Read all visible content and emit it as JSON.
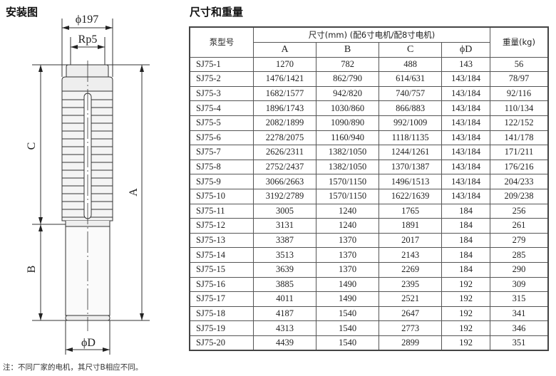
{
  "drawing": {
    "title": "安装图",
    "labels": {
      "outer_diameter": "ϕ197",
      "outlet": "Rp5",
      "dim_a": "A",
      "dim_b": "B",
      "dim_c": "C",
      "dim_d": "ϕD"
    }
  },
  "table": {
    "title": "尺寸和重量",
    "headers": {
      "model": "泵型号",
      "dimensions": "尺寸(mm) (配6寸电机/配8寸电机)",
      "weight": "重量(kg)",
      "sub": [
        "A",
        "B",
        "C",
        "ϕD"
      ]
    },
    "rows": [
      [
        "SJ75-1",
        "1270",
        "782",
        "488",
        "143",
        "56"
      ],
      [
        "SJ75-2",
        "1476/1421",
        "862/790",
        "614/631",
        "143/184",
        "78/97"
      ],
      [
        "SJ75-3",
        "1682/1577",
        "942/820",
        "740/757",
        "143/184",
        "92/116"
      ],
      [
        "SJ75-4",
        "1896/1743",
        "1030/860",
        "866/883",
        "143/184",
        "110/134"
      ],
      [
        "SJ75-5",
        "2082/1899",
        "1090/890",
        "992/1009",
        "143/184",
        "122/152"
      ],
      [
        "SJ75-6",
        "2278/2075",
        "1160/940",
        "1118/1135",
        "143/184",
        "141/178"
      ],
      [
        "SJ75-7",
        "2626/2311",
        "1382/1050",
        "1244/1261",
        "143/184",
        "171/211"
      ],
      [
        "SJ75-8",
        "2752/2437",
        "1382/1050",
        "1370/1387",
        "143/184",
        "176/216"
      ],
      [
        "SJ75-9",
        "3066/2663",
        "1570/1150",
        "1496/1513",
        "143/184",
        "204/233"
      ],
      [
        "SJ75-10",
        "3192/2789",
        "1570/1150",
        "1622/1639",
        "143/184",
        "209/238"
      ],
      [
        "SJ75-11",
        "3005",
        "1240",
        "1765",
        "184",
        "256"
      ],
      [
        "SJ75-12",
        "3131",
        "1240",
        "1891",
        "184",
        "261"
      ],
      [
        "SJ75-13",
        "3387",
        "1370",
        "2017",
        "184",
        "279"
      ],
      [
        "SJ75-14",
        "3513",
        "1370",
        "2143",
        "184",
        "285"
      ],
      [
        "SJ75-15",
        "3639",
        "1370",
        "2269",
        "184",
        "290"
      ],
      [
        "SJ75-16",
        "3885",
        "1490",
        "2395",
        "192",
        "309"
      ],
      [
        "SJ75-17",
        "4011",
        "1490",
        "2521",
        "192",
        "315"
      ],
      [
        "SJ75-18",
        "4187",
        "1540",
        "2647",
        "192",
        "341"
      ],
      [
        "SJ75-19",
        "4313",
        "1540",
        "2773",
        "192",
        "346"
      ],
      [
        "SJ75-20",
        "4439",
        "1540",
        "2899",
        "192",
        "351"
      ]
    ]
  },
  "note": "注：不同厂家的电机，其尺寸B相应不同。"
}
